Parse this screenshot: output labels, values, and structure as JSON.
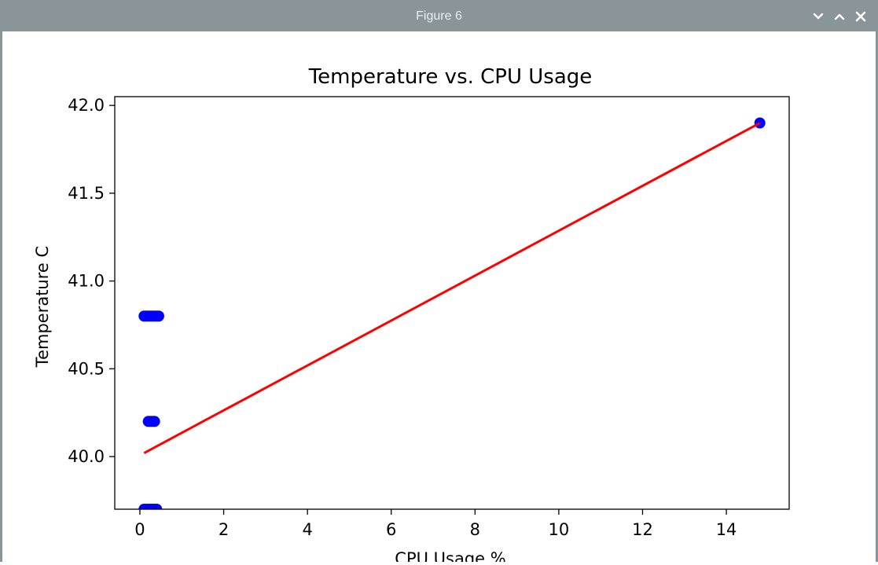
{
  "window": {
    "title": "Figure 6",
    "controls": {
      "minimize_icon": "chevron-down-icon",
      "maximize_icon": "chevron-up-icon",
      "close_icon": "close-icon"
    },
    "titlebar_color": "#8a959a"
  },
  "chart_data": {
    "type": "scatter",
    "title": "Temperature vs. CPU Usage",
    "xlabel": "CPU Usage %",
    "ylabel": "Temperature C",
    "xlim": [
      -0.6,
      15.5
    ],
    "ylim": [
      39.7,
      42.05
    ],
    "x_ticks": [
      0,
      2,
      4,
      6,
      8,
      10,
      12,
      14
    ],
    "x_tick_labels": [
      "0",
      "2",
      "4",
      "6",
      "8",
      "10",
      "12",
      "14"
    ],
    "y_ticks": [
      40.0,
      40.5,
      41.0,
      41.5,
      42.0
    ],
    "y_tick_labels": [
      "40.0",
      "40.5",
      "41.0",
      "41.5",
      "42.0"
    ],
    "grid": false,
    "series": [
      {
        "kind": "scatter",
        "color": "#0000ff",
        "points": [
          {
            "x": 0.1,
            "y": 40.8
          },
          {
            "x": 0.15,
            "y": 40.8
          },
          {
            "x": 0.2,
            "y": 40.8
          },
          {
            "x": 0.25,
            "y": 40.8
          },
          {
            "x": 0.3,
            "y": 40.8
          },
          {
            "x": 0.35,
            "y": 40.8
          },
          {
            "x": 0.4,
            "y": 40.8
          },
          {
            "x": 0.45,
            "y": 40.8
          },
          {
            "x": 0.2,
            "y": 40.2
          },
          {
            "x": 0.25,
            "y": 40.2
          },
          {
            "x": 0.3,
            "y": 40.2
          },
          {
            "x": 0.35,
            "y": 40.2
          },
          {
            "x": 0.1,
            "y": 39.7
          },
          {
            "x": 0.15,
            "y": 39.7
          },
          {
            "x": 0.2,
            "y": 39.7
          },
          {
            "x": 0.25,
            "y": 39.7
          },
          {
            "x": 0.3,
            "y": 39.7
          },
          {
            "x": 0.35,
            "y": 39.7
          },
          {
            "x": 0.4,
            "y": 39.7
          },
          {
            "x": 14.8,
            "y": 41.9
          }
        ]
      },
      {
        "kind": "line",
        "color": "#ff0000",
        "points": [
          {
            "x": 0.1,
            "y": 40.02
          },
          {
            "x": 14.8,
            "y": 41.9
          }
        ]
      }
    ]
  }
}
